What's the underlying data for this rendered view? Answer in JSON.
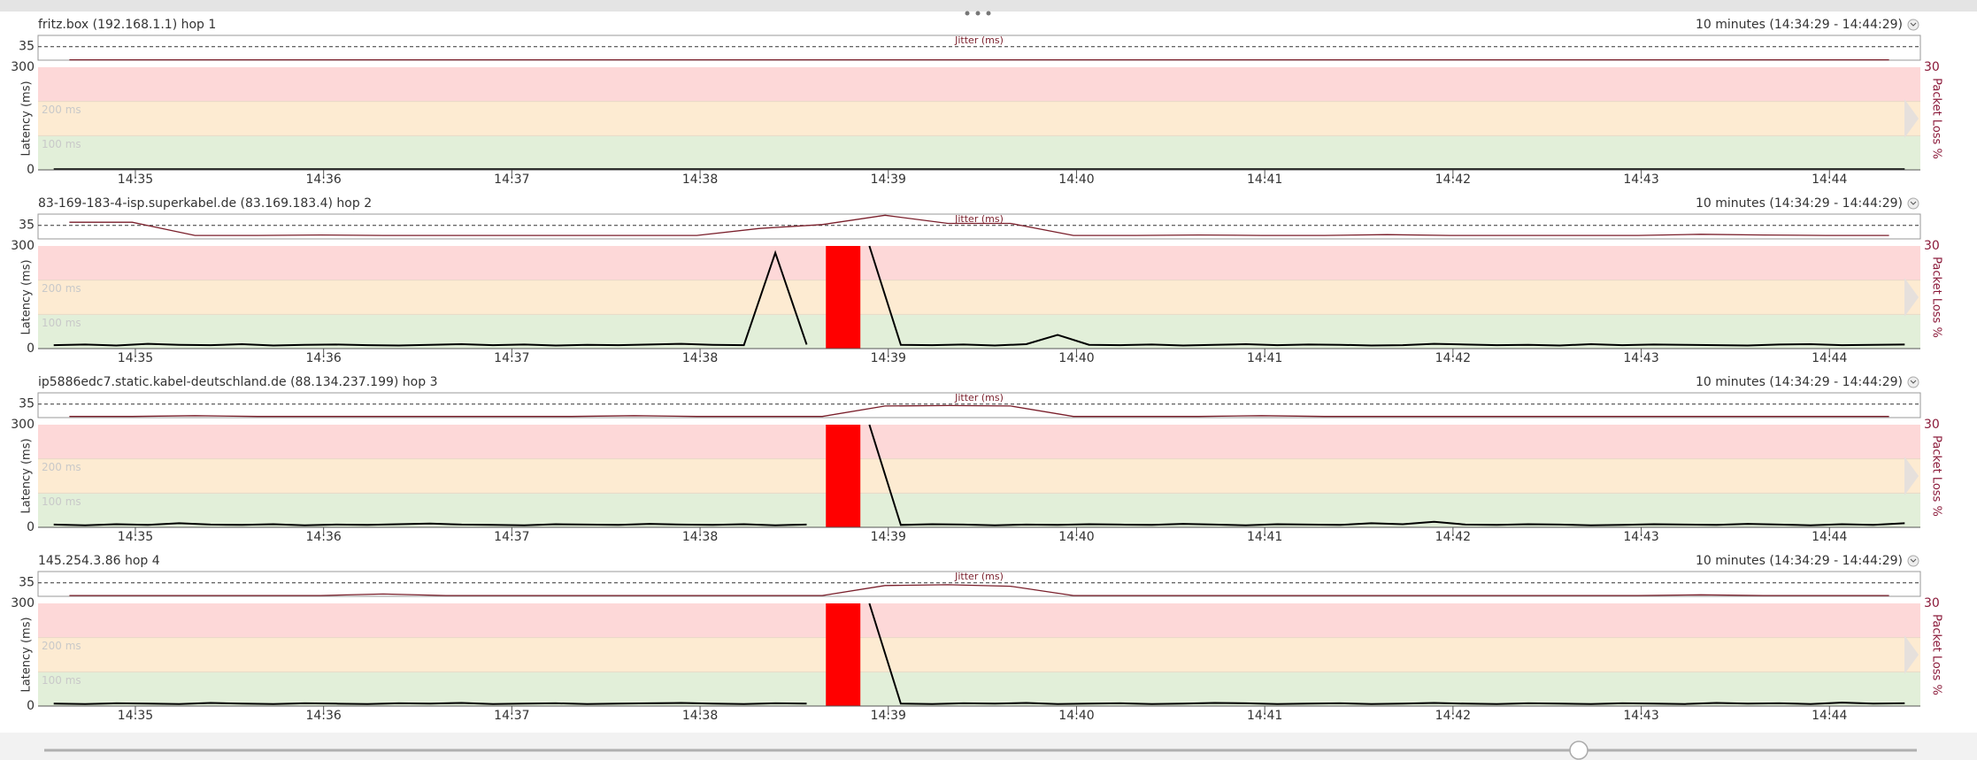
{
  "chart_data": [
    {
      "type": "line",
      "title": "fritz.box (192.168.1.1) hop 1",
      "subtitle": "10 minutes (14:34:29 - 14:44:29)",
      "ylabel": "Latency (ms)",
      "y2label": "Packet Loss %",
      "jitter_label": "Jitter (ms)",
      "xlim": [
        874.483,
        884.483
      ],
      "xticks": [
        {
          "value": 875,
          "label": "14:35"
        },
        {
          "value": 876,
          "label": "14:36"
        },
        {
          "value": 877,
          "label": "14:37"
        },
        {
          "value": 878,
          "label": "14:38"
        },
        {
          "value": 879,
          "label": "14:39"
        },
        {
          "value": 880,
          "label": "14:40"
        },
        {
          "value": 881,
          "label": "14:41"
        },
        {
          "value": 882,
          "label": "14:42"
        },
        {
          "value": 883,
          "label": "14:43"
        },
        {
          "value": 884,
          "label": "14:44"
        }
      ],
      "ylim": [
        0,
        300
      ],
      "yticks": [
        0,
        300
      ],
      "y2lim": [
        0,
        30
      ],
      "y2ticks": [
        30
      ],
      "thresholds": [
        {
          "value": 200,
          "label": "200 ms"
        },
        {
          "value": 100,
          "label": "100 ms"
        }
      ],
      "jitter_ylim": [
        0,
        64
      ],
      "jitter_yticks": [
        35
      ],
      "color": "#000000",
      "jitter_color": "#7a1f2b",
      "loss_color": "#ff0000",
      "values": [
        2,
        2,
        2,
        2,
        2,
        2,
        2,
        2,
        2,
        2,
        2,
        2,
        2,
        2,
        2,
        2,
        2,
        2,
        2,
        2,
        2,
        2,
        2,
        2,
        2,
        2,
        2,
        2,
        2,
        2,
        2,
        2,
        2,
        2,
        2,
        2,
        2,
        2,
        2,
        2,
        2,
        2,
        2,
        2,
        2,
        2,
        2,
        2,
        2,
        2,
        2,
        2,
        2,
        2,
        2,
        2,
        2,
        2,
        2,
        2
      ],
      "jitter": [
        1,
        1,
        1,
        1,
        1,
        1,
        1,
        1,
        1,
        1,
        1,
        1,
        1,
        1,
        1,
        1,
        1,
        1,
        1,
        1,
        1,
        1,
        1,
        1,
        1,
        1,
        1,
        1,
        1,
        1
      ],
      "packet_loss": {
        "x": [],
        "values": []
      }
    },
    {
      "type": "line",
      "title": "83-169-183-4-isp.superkabel.de (83.169.183.4) hop 2",
      "subtitle": "10 minutes (14:34:29 - 14:44:29)",
      "ylabel": "Latency (ms)",
      "y2label": "Packet Loss %",
      "jitter_label": "Jitter (ms)",
      "xlim": [
        874.483,
        884.483
      ],
      "xticks": [
        {
          "value": 875,
          "label": "14:35"
        },
        {
          "value": 876,
          "label": "14:36"
        },
        {
          "value": 877,
          "label": "14:37"
        },
        {
          "value": 878,
          "label": "14:38"
        },
        {
          "value": 879,
          "label": "14:39"
        },
        {
          "value": 880,
          "label": "14:40"
        },
        {
          "value": 881,
          "label": "14:41"
        },
        {
          "value": 882,
          "label": "14:42"
        },
        {
          "value": 883,
          "label": "14:43"
        },
        {
          "value": 884,
          "label": "14:44"
        }
      ],
      "ylim": [
        0,
        300
      ],
      "yticks": [
        0,
        300
      ],
      "y2lim": [
        0,
        30
      ],
      "y2ticks": [
        30
      ],
      "thresholds": [
        {
          "value": 200,
          "label": "200 ms"
        },
        {
          "value": 100,
          "label": "100 ms"
        }
      ],
      "jitter_ylim": [
        0,
        64
      ],
      "jitter_yticks": [
        35
      ],
      "color": "#000000",
      "jitter_color": "#7a1f2b",
      "loss_color": "#ff0000",
      "values": [
        10,
        12,
        9,
        14,
        11,
        10,
        13,
        9,
        11,
        12,
        10,
        9,
        11,
        13,
        10,
        12,
        9,
        11,
        10,
        12,
        14,
        11,
        10,
        280,
        12,
        null,
        300,
        11,
        10,
        12,
        9,
        13,
        40,
        11,
        10,
        12,
        9,
        11,
        13,
        10,
        12,
        11,
        9,
        10,
        14,
        12,
        10,
        11,
        9,
        13,
        10,
        12,
        11,
        10,
        9,
        12,
        13,
        10,
        11,
        12
      ],
      "jitter": [
        43,
        43,
        9,
        9,
        10,
        9,
        9,
        9,
        9,
        9,
        9,
        27,
        37,
        61,
        40,
        40,
        9,
        9,
        10,
        9,
        9,
        11,
        9,
        9,
        9,
        9,
        12,
        10,
        9,
        9
      ],
      "packet_loss": {
        "x": [
          878.76
        ],
        "values": [
          30
        ]
      }
    },
    {
      "type": "line",
      "title": "ip5886edc7.static.kabel-deutschland.de (88.134.237.199) hop 3",
      "subtitle": "10 minutes (14:34:29 - 14:44:29)",
      "ylabel": "Latency (ms)",
      "y2label": "Packet Loss %",
      "jitter_label": "Jitter (ms)",
      "xlim": [
        874.483,
        884.483
      ],
      "xticks": [
        {
          "value": 875,
          "label": "14:35"
        },
        {
          "value": 876,
          "label": "14:36"
        },
        {
          "value": 877,
          "label": "14:37"
        },
        {
          "value": 878,
          "label": "14:38"
        },
        {
          "value": 879,
          "label": "14:39"
        },
        {
          "value": 880,
          "label": "14:40"
        },
        {
          "value": 881,
          "label": "14:41"
        },
        {
          "value": 882,
          "label": "14:42"
        },
        {
          "value": 883,
          "label": "14:43"
        },
        {
          "value": 884,
          "label": "14:44"
        }
      ],
      "ylim": [
        0,
        300
      ],
      "yticks": [
        0,
        300
      ],
      "y2lim": [
        0,
        30
      ],
      "y2ticks": [
        30
      ],
      "thresholds": [
        {
          "value": 200,
          "label": "200 ms"
        },
        {
          "value": 100,
          "label": "100 ms"
        }
      ],
      "jitter_ylim": [
        0,
        64
      ],
      "jitter_yticks": [
        35
      ],
      "color": "#000000",
      "jitter_color": "#7a1f2b",
      "loss_color": "#ff0000",
      "values": [
        8,
        6,
        9,
        7,
        12,
        8,
        7,
        9,
        6,
        8,
        7,
        9,
        11,
        8,
        7,
        6,
        9,
        8,
        7,
        10,
        8,
        7,
        9,
        6,
        8,
        null,
        300,
        7,
        9,
        8,
        6,
        8,
        7,
        9,
        8,
        7,
        10,
        8,
        6,
        9,
        8,
        7,
        12,
        9,
        16,
        8,
        7,
        9,
        8,
        6,
        7,
        9,
        8,
        7,
        10,
        8,
        6,
        9,
        7,
        12
      ],
      "jitter": [
        3,
        3,
        5,
        3,
        3,
        3,
        3,
        3,
        3,
        5,
        3,
        3,
        3,
        30,
        31,
        30,
        3,
        3,
        3,
        5,
        3,
        3,
        3,
        3,
        3,
        3,
        3,
        3,
        3,
        3
      ],
      "packet_loss": {
        "x": [
          878.76
        ],
        "values": [
          30
        ]
      }
    },
    {
      "type": "line",
      "title": "145.254.3.86 hop 4",
      "subtitle": "10 minutes (14:34:29 - 14:44:29)",
      "ylabel": "Latency (ms)",
      "y2label": "Packet Loss %",
      "jitter_label": "Jitter (ms)",
      "xlim": [
        874.483,
        884.483
      ],
      "xticks": [
        {
          "value": 875,
          "label": "14:35"
        },
        {
          "value": 876,
          "label": "14:36"
        },
        {
          "value": 877,
          "label": "14:37"
        },
        {
          "value": 878,
          "label": "14:38"
        },
        {
          "value": 879,
          "label": "14:39"
        },
        {
          "value": 880,
          "label": "14:40"
        },
        {
          "value": 881,
          "label": "14:41"
        },
        {
          "value": 882,
          "label": "14:42"
        },
        {
          "value": 883,
          "label": "14:43"
        },
        {
          "value": 884,
          "label": "14:44"
        }
      ],
      "ylim": [
        0,
        300
      ],
      "yticks": [
        0,
        300
      ],
      "y2lim": [
        0,
        30
      ],
      "y2ticks": [
        30
      ],
      "thresholds": [
        {
          "value": 200,
          "label": "200 ms"
        },
        {
          "value": 100,
          "label": "100 ms"
        }
      ],
      "jitter_ylim": [
        0,
        64
      ],
      "jitter_yticks": [
        35
      ],
      "color": "#000000",
      "jitter_color": "#7a1f2b",
      "loss_color": "#ff0000",
      "values": [
        7,
        6,
        8,
        7,
        6,
        9,
        7,
        6,
        8,
        7,
        6,
        8,
        7,
        9,
        6,
        7,
        8,
        6,
        7,
        8,
        9,
        7,
        6,
        8,
        7,
        null,
        300,
        7,
        6,
        8,
        7,
        9,
        6,
        7,
        8,
        6,
        7,
        9,
        8,
        6,
        7,
        8,
        6,
        7,
        9,
        7,
        6,
        8,
        7,
        6,
        8,
        7,
        6,
        9,
        7,
        8,
        6,
        10,
        7,
        8
      ],
      "jitter": [
        2,
        2,
        2,
        2,
        2,
        6,
        2,
        2,
        2,
        2,
        2,
        2,
        2,
        28,
        30,
        26,
        2,
        2,
        2,
        2,
        2,
        2,
        2,
        2,
        2,
        2,
        4,
        2,
        2,
        2
      ],
      "packet_loss": {
        "x": [
          878.76
        ],
        "values": [
          30
        ]
      }
    }
  ]
}
